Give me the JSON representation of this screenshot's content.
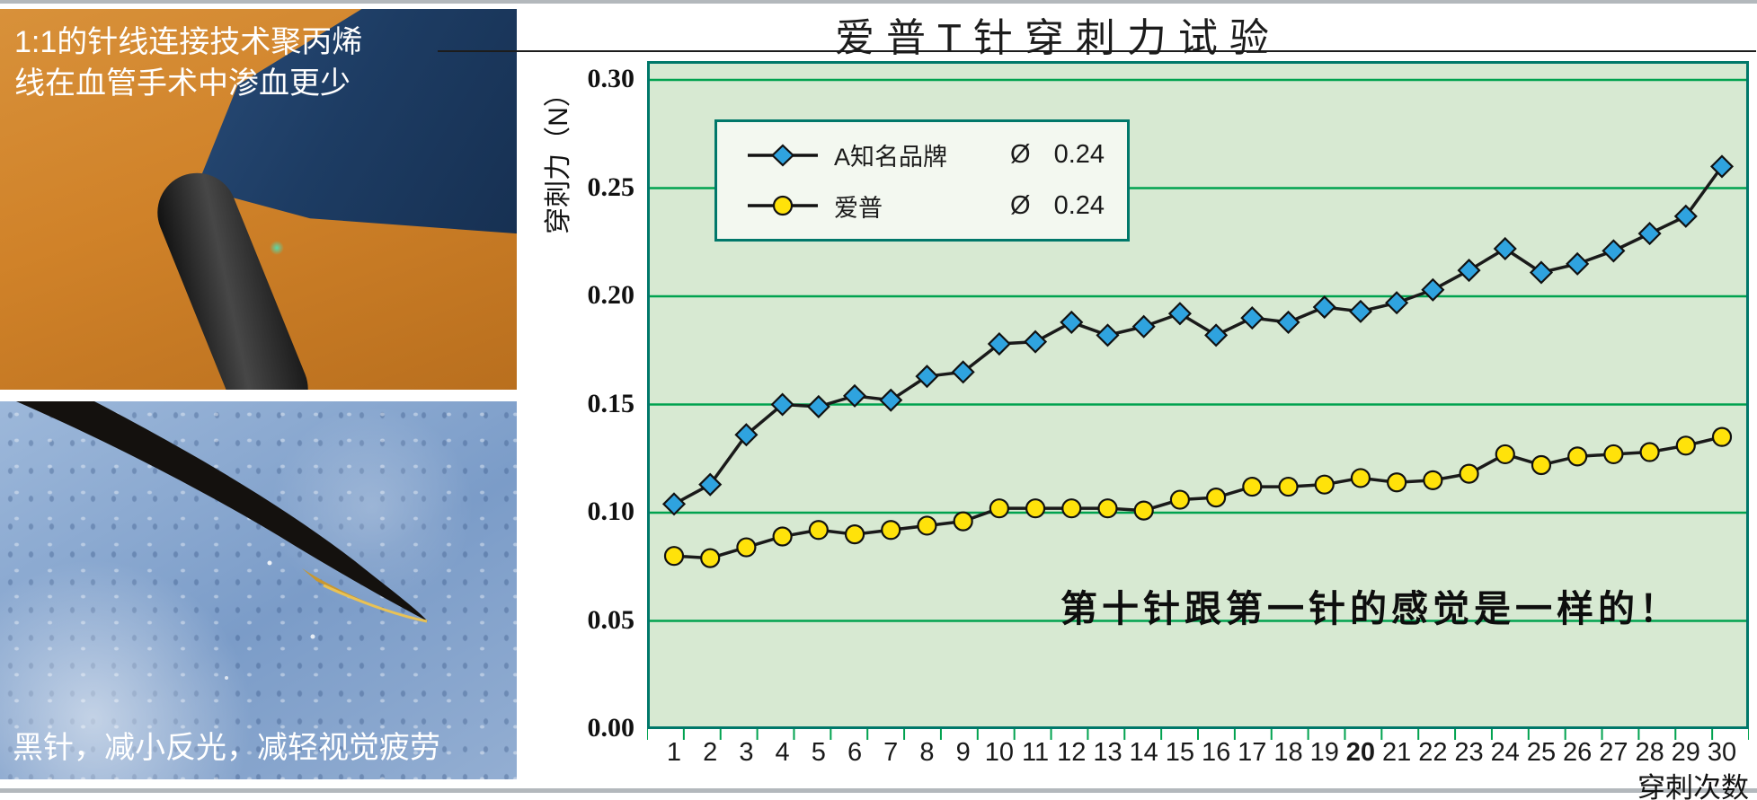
{
  "photos": {
    "top_caption_line1": "1:1的针线连接技术聚丙烯",
    "top_caption_line2": "线在血管手术中渗血更少",
    "bottom_caption": "黑针，减小反光，减轻视觉疲劳"
  },
  "chart": {
    "title": "爱普T针穿刺力试验",
    "y_axis_title": "穿刺力（N）",
    "x_axis_title": "穿刺次数",
    "annotation": "第十针跟第一针的感觉是一样的！",
    "legend": {
      "rows": [
        {
          "label": "A知名品牌",
          "marker": "diamond",
          "marker_color": "#2FA3DF",
          "diameter_symbol": "Ø",
          "diameter_value": "0.24"
        },
        {
          "label": "爱普",
          "marker": "circle",
          "marker_color": "#FFE20A",
          "diameter_symbol": "Ø",
          "diameter_value": "0.24"
        }
      ]
    }
  },
  "chart_data": {
    "type": "line",
    "title": "爱普T针穿刺力试验",
    "xlabel": "穿刺次数",
    "ylabel": "穿刺力（N）",
    "x": [
      1,
      2,
      3,
      4,
      5,
      6,
      7,
      8,
      9,
      10,
      11,
      12,
      13,
      14,
      15,
      16,
      17,
      18,
      19,
      20,
      21,
      22,
      23,
      24,
      25,
      26,
      27,
      28,
      29,
      30
    ],
    "x_bold_label": "20",
    "ylim": [
      0,
      0.3
    ],
    "ytick_step": 0.05,
    "yticks": [
      "0.30",
      "0.25",
      "0.20",
      "0.15",
      "0.10",
      "0.05",
      "0.00"
    ],
    "grid": "horizontal",
    "legend_position": "inside-top-left",
    "annotation": "第十针跟第一针的感觉是一样的！",
    "series": [
      {
        "name": "A知名品牌",
        "marker": "diamond",
        "marker_color": "#2FA3DF",
        "line_color": "#1a1a1a",
        "values": [
          0.104,
          0.113,
          0.136,
          0.15,
          0.149,
          0.154,
          0.152,
          0.163,
          0.165,
          0.178,
          0.179,
          0.188,
          0.182,
          0.186,
          0.192,
          0.182,
          0.19,
          0.188,
          0.195,
          0.193,
          0.197,
          0.203,
          0.212,
          0.222,
          0.211,
          0.215,
          0.221,
          0.229,
          0.237,
          0.26
        ]
      },
      {
        "name": "爱普",
        "marker": "circle",
        "marker_color": "#FFE20A",
        "line_color": "#1a1a1a",
        "values": [
          0.08,
          0.079,
          0.084,
          0.089,
          0.092,
          0.09,
          0.092,
          0.094,
          0.096,
          0.102,
          0.102,
          0.102,
          0.102,
          0.101,
          0.106,
          0.107,
          0.112,
          0.112,
          0.113,
          0.116,
          0.114,
          0.115,
          0.118,
          0.127,
          0.122,
          0.126,
          0.127,
          0.128,
          0.131,
          0.135
        ]
      }
    ]
  },
  "colors": {
    "plot_bg": "#D7E9D2",
    "gridline": "#00A24F",
    "plot_border": "#00786A",
    "legend_bg": "#F3F8F0",
    "series_line": "#1A1A1A",
    "blue_marker": "#2FA3DF",
    "yellow_marker": "#FFE20A"
  }
}
